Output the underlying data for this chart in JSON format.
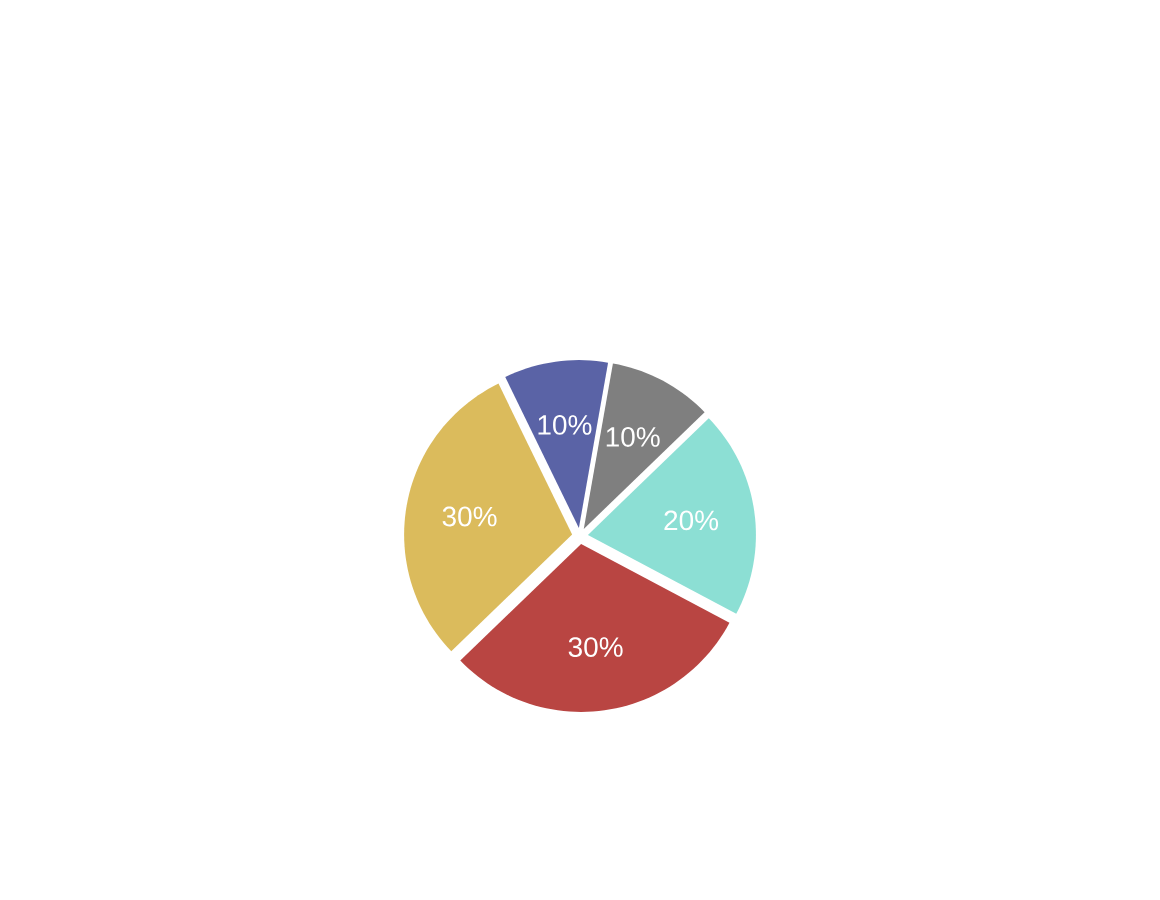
{
  "chart_data": {
    "type": "pie",
    "categories": [
      null,
      null,
      null,
      null,
      null
    ],
    "values": [
      10,
      20,
      30,
      30,
      10
    ],
    "colors": [
      "#7f7f7f",
      "#8cdfd4",
      "#b94542",
      "#dbbb5c",
      "#5a63a6"
    ],
    "value_labels": [
      "10%",
      "20%",
      "30%",
      "30%",
      "10%"
    ]
  }
}
